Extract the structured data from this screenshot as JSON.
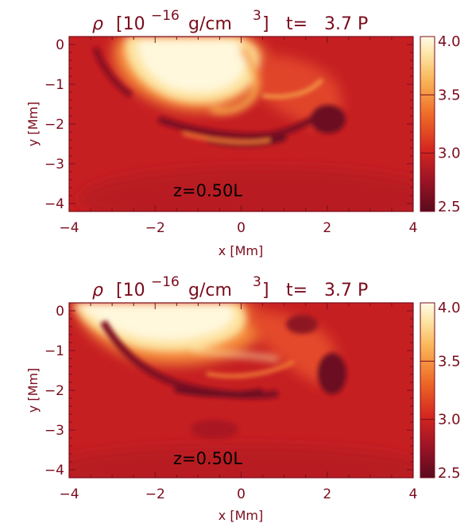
{
  "chart_data": [
    {
      "type": "heatmap",
      "title_symbol": "ρ",
      "title_units": "[10",
      "title_exp": "−16",
      "title_units2": "g/cm",
      "title_exp2": "3",
      "title_units3": "]",
      "title_time": "t=   3.7 P",
      "xlabel": "x [Mm]",
      "ylabel": "y [Mm]",
      "xlim": [
        -4,
        4
      ],
      "ylim": [
        -4.2,
        0.2
      ],
      "xticks": [
        "−4",
        "−2",
        "0",
        "2",
        "4"
      ],
      "yticks": [
        "0",
        "−1",
        "−2",
        "−3",
        "−4"
      ],
      "annotation": "z=0.50L",
      "colorbar": {
        "range": [
          2.5,
          4.0
        ],
        "ticks": [
          "4.0",
          "3.5",
          "3.0",
          "2.5"
        ]
      },
      "features": [
        {
          "kind": "bright",
          "x": -1.0,
          "y": -0.4,
          "rx": 1.6,
          "ry": 0.7,
          "value": 4.0
        },
        {
          "kind": "dark",
          "x": 0.0,
          "y": -2.3,
          "rx": 1.3,
          "ry": 0.2,
          "value": 2.6
        },
        {
          "kind": "dark",
          "x": 2.0,
          "y": -1.8,
          "rx": 0.6,
          "ry": 0.4,
          "value": 2.6
        },
        {
          "kind": "dark",
          "x": -3.2,
          "y": -0.8,
          "rx": 0.3,
          "ry": 0.6,
          "value": 2.7
        }
      ]
    },
    {
      "type": "heatmap",
      "title_symbol": "ρ",
      "title_units": "[10",
      "title_exp": "−16",
      "title_units2": "g/cm",
      "title_exp2": "3",
      "title_units3": "]",
      "title_time": "t=   3.7 P",
      "xlabel": "x [Mm]",
      "ylabel": "y [Mm]",
      "xlim": [
        -4,
        4
      ],
      "ylim": [
        -4.2,
        0.2
      ],
      "xticks": [
        "−4",
        "−2",
        "0",
        "2",
        "4"
      ],
      "yticks": [
        "0",
        "−1",
        "−2",
        "−3",
        "−4"
      ],
      "annotation": "z=0.50L",
      "colorbar": {
        "range": [
          2.5,
          4.0
        ],
        "ticks": [
          "4.0",
          "3.5",
          "3.0",
          "2.5"
        ]
      },
      "features": [
        {
          "kind": "bright",
          "x": -1.5,
          "y": -0.5,
          "rx": 2.0,
          "ry": 0.6,
          "value": 4.0
        },
        {
          "kind": "dark",
          "x": -0.5,
          "y": -2.1,
          "rx": 1.6,
          "ry": 0.22,
          "value": 2.6
        },
        {
          "kind": "dark",
          "x": 1.9,
          "y": -1.8,
          "rx": 0.45,
          "ry": 0.55,
          "value": 2.6
        },
        {
          "kind": "dark",
          "x": 1.7,
          "y": -0.4,
          "rx": 0.5,
          "ry": 0.3,
          "value": 2.7
        }
      ]
    }
  ]
}
